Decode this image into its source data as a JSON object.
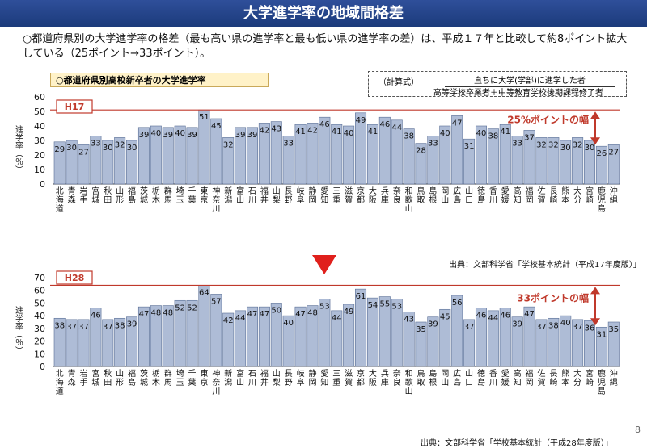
{
  "title": "大学進学率の地域間格差",
  "note": "○都道府県別の大学進学率の格差（最も高い県の進学率と最も低い県の進学率の差）は、平成１７年と比較して約8ポイント拡大している（25ポイント→33ポイント）。",
  "subhead": "○都道府県別高校新卒者の大学進学率",
  "formula": {
    "label": "（計算式）",
    "numerator": "直ちに大学(学部)に進学した者",
    "denominator": "高等学校卒業者＋中等教育学校後期課程修了者"
  },
  "page_number": "8",
  "colors": {
    "bar": "#aebcd6",
    "bar_edge": "#5a6f96",
    "ref_line": "#c0392b",
    "accent": "#c0392b"
  },
  "chart_data": [
    {
      "type": "bar",
      "year_label": "H17",
      "gap_label": "25%ポイントの幅",
      "ylabel": "進学率（％）",
      "ylim": [
        0,
        60
      ],
      "yticks": [
        0,
        10,
        20,
        30,
        40,
        50,
        60
      ],
      "source": "出典：文部科学省「学校基本統計（平成17年度版）」",
      "categories": [
        "北海道",
        "青森",
        "岩手",
        "宮城",
        "秋田",
        "山形",
        "福島",
        "茨城",
        "栃木",
        "群馬",
        "埼玉",
        "千葉",
        "東京",
        "神奈川",
        "新潟",
        "富山",
        "石川",
        "福井",
        "山梨",
        "長野",
        "岐阜",
        "静岡",
        "愛知",
        "三重",
        "滋賀",
        "京都",
        "大阪",
        "兵庫",
        "奈良",
        "和歌山",
        "鳥取",
        "島根",
        "岡山",
        "広島",
        "山口",
        "徳島",
        "香川",
        "愛媛",
        "高知",
        "福岡",
        "佐賀",
        "長崎",
        "熊本",
        "大分",
        "宮崎",
        "鹿児島",
        "沖縄"
      ],
      "values": [
        29,
        30,
        27,
        33,
        30,
        32,
        30,
        39,
        40,
        39,
        40,
        39,
        51,
        45,
        32,
        39,
        39,
        42,
        43,
        33,
        41,
        42,
        46,
        41,
        40,
        49,
        41,
        46,
        44,
        38,
        28,
        33,
        40,
        47,
        31,
        40,
        38,
        41,
        33,
        37,
        32,
        32,
        30,
        32,
        30,
        26,
        27
      ],
      "max_line": 51,
      "min_line": 26
    },
    {
      "type": "bar",
      "year_label": "H28",
      "gap_label": "33ポイントの幅",
      "ylabel": "進学率（％）",
      "ylim": [
        0,
        70
      ],
      "yticks": [
        0,
        10,
        20,
        30,
        40,
        50,
        60,
        70
      ],
      "source": "出典：文部科学省「学校基本統計（平成28年度版）」",
      "categories": [
        "北海道",
        "青森",
        "岩手",
        "宮城",
        "秋田",
        "山形",
        "福島",
        "茨城",
        "栃木",
        "群馬",
        "埼玉",
        "千葉",
        "東京",
        "神奈川",
        "新潟",
        "富山",
        "石川",
        "福井",
        "山梨",
        "長野",
        "岐阜",
        "静岡",
        "愛知",
        "三重",
        "滋賀",
        "京都",
        "大阪",
        "兵庫",
        "奈良",
        "和歌山",
        "鳥取",
        "島根",
        "岡山",
        "広島",
        "山口",
        "徳島",
        "香川",
        "愛媛",
        "高知",
        "福岡",
        "佐賀",
        "長崎",
        "熊本",
        "大分",
        "宮崎",
        "鹿児島",
        "沖縄"
      ],
      "values": [
        38,
        37,
        37,
        46,
        37,
        38,
        39,
        47,
        48,
        48,
        52,
        52,
        64,
        57,
        42,
        44,
        47,
        47,
        50,
        40,
        47,
        48,
        53,
        44,
        49,
        61,
        54,
        55,
        53,
        43,
        35,
        39,
        45,
        56,
        37,
        46,
        44,
        46,
        39,
        47,
        37,
        38,
        40,
        37,
        36,
        31,
        35
      ],
      "max_line": 64,
      "min_line": 31
    }
  ]
}
